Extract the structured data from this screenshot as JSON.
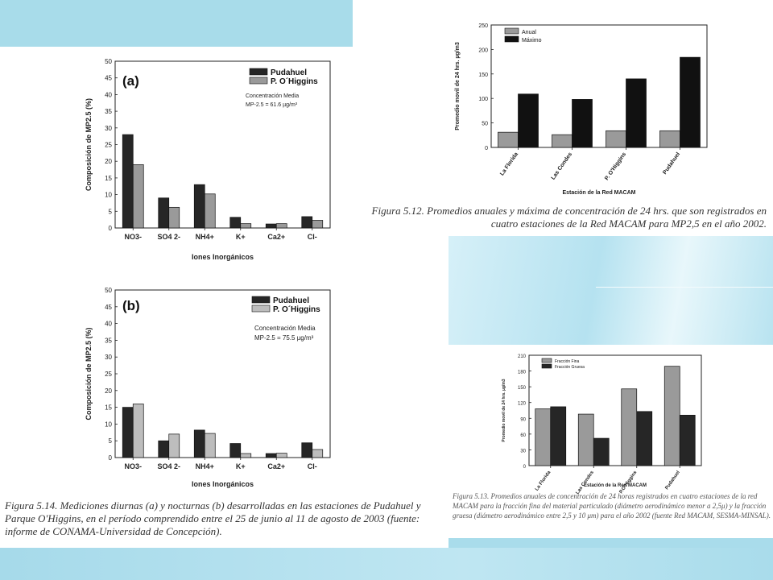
{
  "captions": {
    "fig514": "Figura 5.14. Mediciones diurnas (a) y nocturnas (b) desarrolladas en las estaciones de Pudahuel y Parque O'Higgins, en el período comprendido entre el 25 de junio al 11 de agosto de 2003 (fuente: informe de CONAMA-Universidad de Concepción).",
    "fig512": "Figura 5.12. Promedios anuales y máxima de concentración de 24 hrs. que son registrados en cuatro estaciones de la Red MACAM para MP2,5 en el año 2002.",
    "fig513": "Figura 5.13. Promedios anuales de concentración de 24 horas registrados en cuatro estaciones de la red MACAM para la fracción fina del material particulado (diámetro aerodinámico menor a 2,5μ) y la fracción gruesa (diámetro aerodinámico entre 2,5 y 10 μm) para el año 2002 (fuente Red MACAM, SESMA-MINSAL)."
  },
  "colors": {
    "dark": "#262626",
    "gray": "#9a9a9a",
    "light": "#bdbdbd",
    "black": "#111111"
  },
  "chart_data": [
    {
      "id": "chartA",
      "type": "bar",
      "panel_label": "(a)",
      "categories": [
        "NO3-",
        "SO4 2-",
        "NH4+",
        "K+",
        "Ca2+",
        "Cl-"
      ],
      "series": [
        {
          "name": "Pudahuel",
          "values": [
            28,
            9,
            13,
            3.2,
            1.2,
            3.4
          ]
        },
        {
          "name": "P. O´Higgins",
          "values": [
            19,
            6.2,
            10.2,
            1.3,
            1.3,
            2.3
          ]
        }
      ],
      "note": [
        "Concentración Media",
        "MP-2.5 = 61.6 µg/m³"
      ],
      "xlabel": "Iones Inorgánicos",
      "ylabel": "Composición de MP2.5 (%)",
      "ylim": [
        0,
        50
      ],
      "yticks": [
        0,
        5,
        10,
        15,
        20,
        25,
        30,
        35,
        40,
        45,
        50
      ],
      "legend_position": "top-right"
    },
    {
      "id": "chartB",
      "type": "bar",
      "panel_label": "(b)",
      "categories": [
        "NO3-",
        "SO4 2-",
        "NH4+",
        "K+",
        "Ca2+",
        "Cl-"
      ],
      "series": [
        {
          "name": "Pudahuel",
          "values": [
            15,
            5,
            8.2,
            4.2,
            1.2,
            4.4
          ]
        },
        {
          "name": "P. O´Higgins",
          "values": [
            16,
            7,
            7.2,
            1.2,
            1.3,
            2.4
          ]
        }
      ],
      "note": [
        "Concentración Media",
        "MP-2.5 = 75.5 µg/m³"
      ],
      "xlabel": "Iones Inorgánicos",
      "ylabel": "Composición de MP2.5 (%)",
      "ylim": [
        0,
        50
      ],
      "yticks": [
        0,
        5,
        10,
        15,
        20,
        25,
        30,
        35,
        40,
        45,
        50
      ],
      "legend_position": "top-right"
    },
    {
      "id": "chart512",
      "type": "bar",
      "categories": [
        "La Florida",
        "Las Condes",
        "P. O'Higgins",
        "Pudahuel"
      ],
      "series": [
        {
          "name": "Anual",
          "values": [
            31,
            26,
            34,
            34
          ]
        },
        {
          "name": "Máximo",
          "values": [
            109,
            98,
            140,
            184
          ]
        }
      ],
      "xlabel": "Estación de la Red MACAM",
      "ylabel": "Promedio movil de 24 hrs. µg/m3",
      "ylim": [
        0,
        250
      ],
      "yticks": [
        0,
        50,
        100,
        150,
        200,
        250
      ],
      "legend_position": "top-left"
    },
    {
      "id": "chart513",
      "type": "bar",
      "categories": [
        "La Florida",
        "Las Condes",
        "P.O'Higgins",
        "Pudahuel"
      ],
      "series": [
        {
          "name": "Fracción Fina",
          "values": [
            108,
            98,
            146,
            189
          ]
        },
        {
          "name": "Fracción Gruesa",
          "values": [
            112,
            52,
            103,
            96
          ]
        }
      ],
      "xlabel": "Estación de la Red MACAM",
      "ylabel": "Promedio movil de 24 hrs. µg/m3",
      "ylim": [
        0,
        210
      ],
      "yticks": [
        0,
        30,
        60,
        90,
        120,
        150,
        180,
        210
      ],
      "legend_position": "top-left"
    }
  ]
}
